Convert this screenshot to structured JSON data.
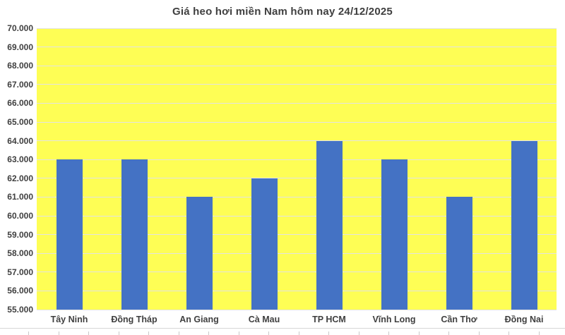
{
  "chart_data": {
    "type": "bar",
    "title": "Giá heo hơi miền Nam hôm nay 24/12/2025",
    "categories": [
      "Tây Ninh",
      "Đồng Tháp",
      "An Giang",
      "Cà Mau",
      "TP HCM",
      "Vĩnh Long",
      "Cần Thơ",
      "Đồng Nai"
    ],
    "values": [
      63000,
      63000,
      61000,
      62000,
      64000,
      63000,
      61000,
      64000
    ],
    "xlabel": "",
    "ylabel": "",
    "ylim": [
      55000,
      70000
    ],
    "ytick_step": 1000,
    "ytick_labels": [
      "55.000",
      "56.000",
      "57.000",
      "58.000",
      "59.000",
      "60.000",
      "61.000",
      "62.000",
      "63.000",
      "64.000",
      "65.000",
      "66.000",
      "67.000",
      "68.000",
      "69.000",
      "70.000"
    ],
    "grid": true,
    "legend": false,
    "colors": {
      "bar": "#4472C4",
      "plot_background": "#FEFE55",
      "gridline": "#E3E3E3",
      "text": "#3F3F3F"
    }
  }
}
